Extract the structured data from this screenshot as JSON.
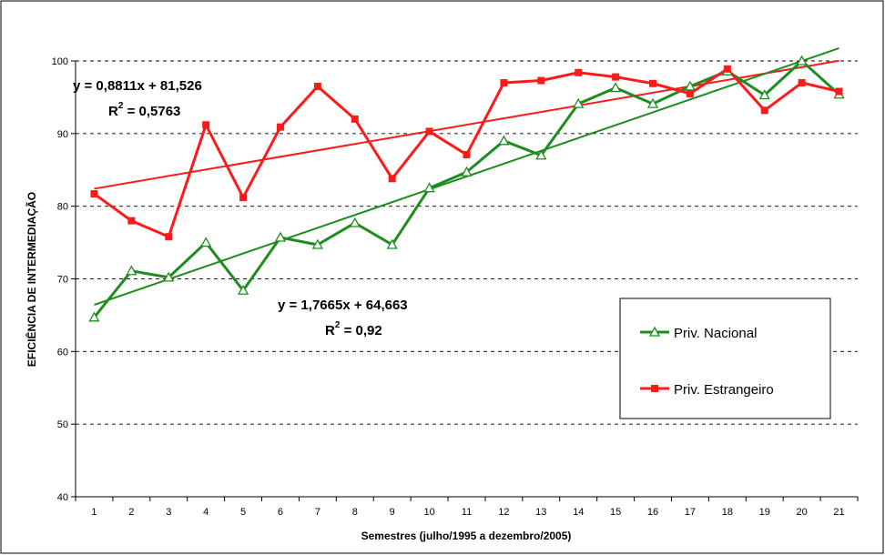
{
  "chart_data": {
    "type": "line",
    "xlabel": "Semestres (julho/1995 a dezembro/2005)",
    "ylabel": "EFICIÊNCIA DE INTERMEDIAÇÃO",
    "ylim": [
      40,
      100
    ],
    "yticks": [
      40,
      50,
      60,
      70,
      80,
      90,
      100
    ],
    "grid": "horizontal-dashed",
    "legend_position": "right",
    "x": [
      1,
      2,
      3,
      4,
      5,
      6,
      7,
      8,
      9,
      10,
      11,
      12,
      13,
      14,
      15,
      16,
      17,
      18,
      19,
      20,
      21
    ],
    "series": [
      {
        "name": "Priv. Nacional",
        "color": "#1f8c1f",
        "marker": "triangle-open",
        "values": [
          64.7,
          71.1,
          70.2,
          75.0,
          68.4,
          75.7,
          74.7,
          77.7,
          74.7,
          82.5,
          84.7,
          89.0,
          87.0,
          94.1,
          96.3,
          94.1,
          96.5,
          98.6,
          95.3,
          100.0,
          95.4
        ],
        "trendline": {
          "equation": "y = 1,7665x + 64,663",
          "r2_label": "R",
          "r2_sup": "2",
          "r2_value": " = 0,92",
          "slope": 1.7665,
          "intercept": 64.663
        }
      },
      {
        "name": "Priv. Estrangeiro",
        "color": "#ff1a1a",
        "marker": "square",
        "values": [
          81.7,
          78.0,
          75.8,
          91.2,
          81.2,
          90.9,
          96.5,
          92.0,
          83.8,
          90.3,
          87.1,
          97.0,
          97.3,
          98.4,
          97.8,
          96.9,
          95.5,
          98.9,
          93.2,
          97.0,
          95.8
        ],
        "trendline": {
          "equation": "y = 0,8811x + 81,526",
          "r2_label": "R",
          "r2_sup": "2",
          "r2_value": " = 0,5763",
          "slope": 0.8811,
          "intercept": 81.526
        }
      }
    ]
  }
}
